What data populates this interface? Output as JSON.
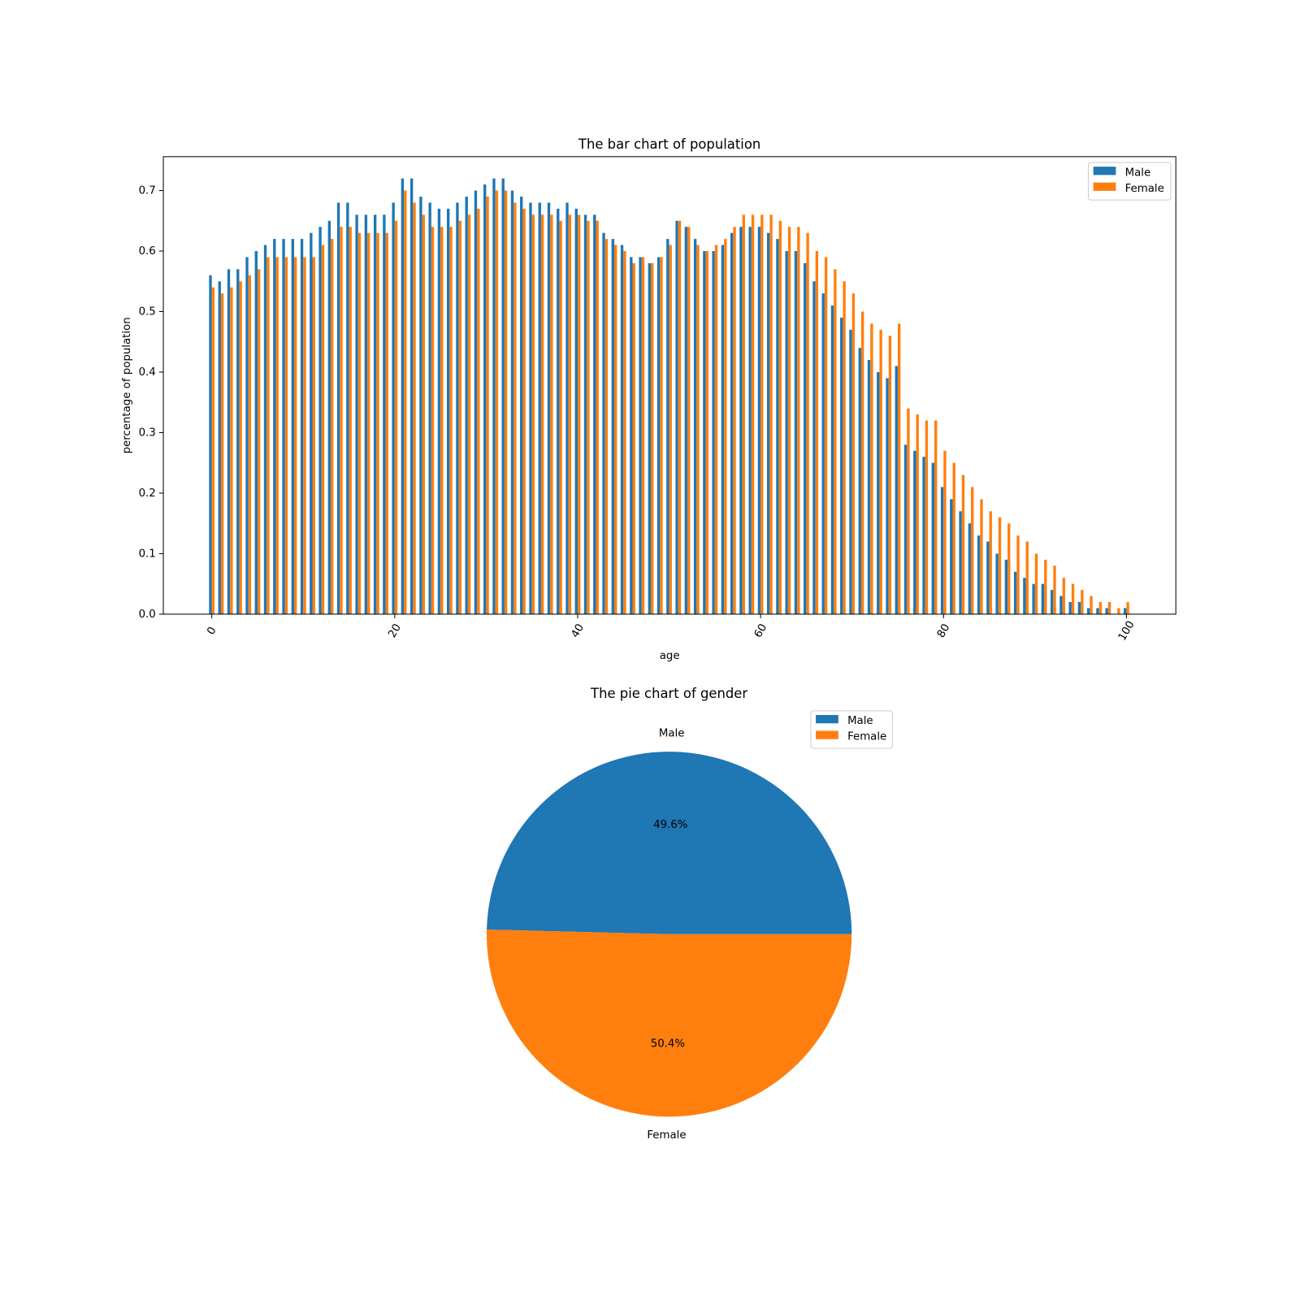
{
  "chart_data": [
    {
      "type": "bar",
      "title": "The bar chart of population",
      "x_label": "age",
      "y_label": "percentage of population",
      "x": [
        0,
        1,
        2,
        3,
        4,
        5,
        6,
        7,
        8,
        9,
        10,
        11,
        12,
        13,
        14,
        15,
        16,
        17,
        18,
        19,
        20,
        21,
        22,
        23,
        24,
        25,
        26,
        27,
        28,
        29,
        30,
        31,
        32,
        33,
        34,
        35,
        36,
        37,
        38,
        39,
        40,
        41,
        42,
        43,
        44,
        45,
        46,
        47,
        48,
        49,
        50,
        51,
        52,
        53,
        54,
        55,
        56,
        57,
        58,
        59,
        60,
        61,
        62,
        63,
        64,
        65,
        66,
        67,
        68,
        69,
        70,
        71,
        72,
        73,
        74,
        75,
        76,
        77,
        78,
        79,
        80,
        81,
        82,
        83,
        84,
        85,
        86,
        87,
        88,
        89,
        90,
        91,
        92,
        93,
        94,
        95,
        96,
        97,
        98,
        99,
        100
      ],
      "series": [
        {
          "name": "Male",
          "color": "#1f77b4",
          "values": [
            0.56,
            0.55,
            0.57,
            0.57,
            0.59,
            0.6,
            0.61,
            0.62,
            0.62,
            0.62,
            0.62,
            0.63,
            0.64,
            0.65,
            0.68,
            0.68,
            0.66,
            0.66,
            0.66,
            0.66,
            0.68,
            0.72,
            0.72,
            0.69,
            0.68,
            0.67,
            0.67,
            0.68,
            0.69,
            0.7,
            0.71,
            0.72,
            0.72,
            0.7,
            0.69,
            0.68,
            0.68,
            0.68,
            0.67,
            0.68,
            0.67,
            0.66,
            0.66,
            0.63,
            0.62,
            0.61,
            0.59,
            0.59,
            0.58,
            0.59,
            0.62,
            0.65,
            0.64,
            0.62,
            0.6,
            0.6,
            0.61,
            0.63,
            0.64,
            0.64,
            0.64,
            0.63,
            0.62,
            0.6,
            0.6,
            0.58,
            0.55,
            0.53,
            0.51,
            0.49,
            0.47,
            0.44,
            0.42,
            0.4,
            0.39,
            0.41,
            0.28,
            0.27,
            0.26,
            0.25,
            0.21,
            0.19,
            0.17,
            0.15,
            0.13,
            0.12,
            0.1,
            0.09,
            0.07,
            0.06,
            0.05,
            0.05,
            0.04,
            0.03,
            0.02,
            0.02,
            0.01,
            0.01,
            0.01,
            0,
            0.01
          ]
        },
        {
          "name": "Female",
          "color": "#ff7f0e",
          "values": [
            0.54,
            0.53,
            0.54,
            0.55,
            0.56,
            0.57,
            0.59,
            0.59,
            0.59,
            0.59,
            0.59,
            0.59,
            0.61,
            0.62,
            0.64,
            0.64,
            0.63,
            0.63,
            0.63,
            0.63,
            0.65,
            0.7,
            0.68,
            0.66,
            0.64,
            0.64,
            0.64,
            0.65,
            0.66,
            0.67,
            0.69,
            0.7,
            0.7,
            0.68,
            0.67,
            0.66,
            0.66,
            0.66,
            0.65,
            0.66,
            0.66,
            0.65,
            0.65,
            0.62,
            0.61,
            0.6,
            0.58,
            0.59,
            0.58,
            0.59,
            0.61,
            0.65,
            0.64,
            0.61,
            0.6,
            0.61,
            0.62,
            0.64,
            0.66,
            0.66,
            0.66,
            0.66,
            0.65,
            0.64,
            0.64,
            0.63,
            0.6,
            0.59,
            0.57,
            0.55,
            0.53,
            0.5,
            0.48,
            0.47,
            0.46,
            0.48,
            0.34,
            0.33,
            0.32,
            0.32,
            0.27,
            0.25,
            0.23,
            0.21,
            0.19,
            0.17,
            0.16,
            0.15,
            0.13,
            0.12,
            0.1,
            0.09,
            0.08,
            0.06,
            0.05,
            0.04,
            0.03,
            0.02,
            0.02,
            0.01,
            0.02
          ]
        }
      ],
      "xlim": [
        -5.3,
        105.4
      ],
      "xticks": [
        0,
        20,
        40,
        60,
        80,
        100
      ],
      "ylim": [
        0,
        0.756
      ],
      "yticks": [
        {
          "value": 0,
          "label": "0.0"
        },
        0.1,
        0.2,
        0.3,
        0.4,
        0.5,
        0.6,
        0.7
      ],
      "legend": "upper right"
    },
    {
      "type": "pie",
      "title": "The pie chart of gender",
      "categories": [
        "Male",
        "Female"
      ],
      "values": [
        49.6,
        50.4
      ],
      "value_labels": [
        "49.6%",
        "50.4%"
      ],
      "colors": [
        "#1f77b4",
        "#ff7f0e"
      ],
      "legend": "upper right"
    }
  ]
}
